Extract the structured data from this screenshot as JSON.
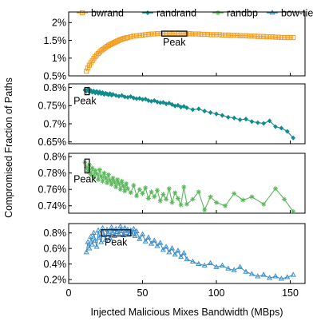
{
  "chart_data": {
    "type": "line",
    "xlabel": "Injected Malicious Mixes Bandwidth (MBps)",
    "ylabel": "Compromised Fraction of Paths",
    "xlim": [
      0,
      160
    ],
    "x_ticks": [
      "0",
      "50",
      "100",
      "150"
    ],
    "x_tick_values": [
      0,
      50,
      100,
      150
    ],
    "legend": {
      "placement": "top",
      "entries": [
        "bwrand",
        "randrand",
        "randbp",
        "bow-tie"
      ]
    },
    "panels": [
      {
        "series_name": "bwrand",
        "color": "#f39c1d",
        "marker": "square",
        "ylim": [
          0.5,
          2.3
        ],
        "y_ticks": [
          "0.5%",
          "1%",
          "1.5%",
          "2%"
        ],
        "y_tick_values": [
          0.5,
          1.0,
          1.5,
          2.0
        ],
        "x": [
          12,
          13,
          14,
          15,
          16,
          17,
          18,
          19,
          20,
          21,
          22,
          23,
          24,
          25,
          26,
          27,
          28,
          29,
          30,
          31,
          32,
          33,
          34,
          35,
          36,
          37,
          38,
          39,
          40,
          42,
          44,
          46,
          48,
          50,
          52,
          54,
          56,
          58,
          60,
          62,
          64,
          66,
          68,
          70,
          72,
          74,
          76,
          78,
          80,
          82,
          84,
          86,
          88,
          90,
          92,
          94,
          96,
          98,
          100,
          102,
          104,
          106,
          108,
          110,
          112,
          114,
          116,
          118,
          120,
          122,
          124,
          126,
          128,
          130,
          132,
          134,
          136,
          138,
          140,
          142,
          144,
          146,
          148,
          150,
          152
        ],
        "values": [
          0.63,
          0.72,
          0.8,
          0.87,
          0.93,
          0.99,
          1.04,
          1.09,
          1.13,
          1.17,
          1.21,
          1.24,
          1.27,
          1.3,
          1.33,
          1.36,
          1.38,
          1.4,
          1.42,
          1.44,
          1.46,
          1.48,
          1.5,
          1.52,
          1.53,
          1.55,
          1.56,
          1.57,
          1.58,
          1.6,
          1.62,
          1.63,
          1.64,
          1.65,
          1.66,
          1.67,
          1.68,
          1.68,
          1.69,
          1.69,
          1.7,
          1.7,
          1.7,
          1.69,
          1.7,
          1.69,
          1.69,
          1.69,
          1.68,
          1.69,
          1.68,
          1.68,
          1.68,
          1.67,
          1.67,
          1.67,
          1.66,
          1.66,
          1.66,
          1.66,
          1.65,
          1.65,
          1.65,
          1.64,
          1.64,
          1.64,
          1.63,
          1.63,
          1.63,
          1.62,
          1.62,
          1.62,
          1.61,
          1.61,
          1.61,
          1.6,
          1.6,
          1.6,
          1.59,
          1.59,
          1.58,
          1.58,
          1.58,
          1.58,
          1.58
        ],
        "peak": {
          "label": "Peak",
          "x_range": [
            63,
            80
          ],
          "y_range": [
            1.62,
            1.76
          ]
        }
      },
      {
        "series_name": "randrand",
        "color": "#0f8c8c",
        "marker": "diamond",
        "ylim": [
          0.645,
          0.81
        ],
        "y_ticks": [
          "0.65%",
          "0.7%",
          "0.75%",
          "0.8%"
        ],
        "y_tick_values": [
          0.65,
          0.7,
          0.75,
          0.8
        ],
        "x": [
          11,
          12,
          13,
          14,
          15,
          16,
          17,
          18,
          19,
          20,
          21,
          22,
          23,
          24,
          25,
          26,
          27,
          28,
          29,
          30,
          32,
          34,
          36,
          38,
          40,
          42,
          44,
          46,
          48,
          50,
          52,
          54,
          56,
          58,
          60,
          62,
          64,
          66,
          68,
          70,
          72,
          74,
          76,
          78,
          80,
          84,
          88,
          92,
          96,
          100,
          104,
          108,
          112,
          116,
          120,
          124,
          128,
          132,
          136,
          140,
          144,
          148,
          152
        ],
        "values": [
          0.793,
          0.79,
          0.795,
          0.788,
          0.792,
          0.787,
          0.79,
          0.785,
          0.789,
          0.784,
          0.788,
          0.783,
          0.786,
          0.781,
          0.784,
          0.782,
          0.78,
          0.783,
          0.779,
          0.781,
          0.778,
          0.776,
          0.778,
          0.774,
          0.773,
          0.775,
          0.771,
          0.769,
          0.77,
          0.767,
          0.768,
          0.764,
          0.762,
          0.764,
          0.76,
          0.758,
          0.759,
          0.755,
          0.757,
          0.753,
          0.749,
          0.751,
          0.746,
          0.748,
          0.744,
          0.739,
          0.741,
          0.735,
          0.731,
          0.727,
          0.723,
          0.718,
          0.716,
          0.711,
          0.713,
          0.706,
          0.703,
          0.701,
          0.708,
          0.692,
          0.688,
          0.679,
          0.661
        ],
        "peak": {
          "label": "Peak",
          "x_range": [
            11,
            14
          ],
          "y_range": [
            0.78,
            0.8
          ]
        }
      },
      {
        "series_name": "randbp",
        "color": "#5cb85c",
        "marker": "star",
        "ylim": [
          0.731,
          0.804
        ],
        "y_ticks": [
          "0.74%",
          "0.76%",
          "0.78%",
          "0.8%"
        ],
        "y_tick_values": [
          0.74,
          0.76,
          0.78,
          0.8
        ],
        "x": [
          11,
          12,
          13,
          14,
          15,
          16,
          17,
          18,
          19,
          20,
          21,
          22,
          23,
          24,
          25,
          26,
          27,
          28,
          29,
          30,
          31,
          32,
          33,
          34,
          35,
          36,
          37,
          38,
          39,
          40,
          42,
          44,
          46,
          48,
          50,
          52,
          54,
          56,
          58,
          60,
          62,
          64,
          66,
          68,
          70,
          72,
          74,
          76,
          78,
          80,
          84,
          88,
          92,
          96,
          100,
          106,
          112,
          118,
          124,
          132,
          140,
          146,
          152
        ],
        "values": [
          0.793,
          0.787,
          0.782,
          0.79,
          0.778,
          0.786,
          0.775,
          0.783,
          0.779,
          0.772,
          0.784,
          0.776,
          0.77,
          0.78,
          0.774,
          0.768,
          0.778,
          0.771,
          0.766,
          0.774,
          0.769,
          0.763,
          0.772,
          0.767,
          0.76,
          0.77,
          0.764,
          0.758,
          0.767,
          0.761,
          0.756,
          0.765,
          0.752,
          0.76,
          0.755,
          0.762,
          0.749,
          0.757,
          0.751,
          0.759,
          0.746,
          0.754,
          0.748,
          0.761,
          0.744,
          0.756,
          0.749,
          0.741,
          0.763,
          0.742,
          0.748,
          0.757,
          0.735,
          0.751,
          0.744,
          0.74,
          0.755,
          0.747,
          0.751,
          0.742,
          0.761,
          0.748,
          0.733
        ],
        "peak": {
          "label": "Peak",
          "x_range": [
            11,
            14
          ],
          "y_range": [
            0.78,
            0.797
          ]
        }
      },
      {
        "series_name": "bow-tie",
        "color": "#3c8dc8",
        "marker": "triangle",
        "ylim": [
          0.15,
          0.92
        ],
        "y_ticks": [
          "0.2%",
          "0.4%",
          "0.6%",
          "0.8%"
        ],
        "y_tick_values": [
          0.2,
          0.4,
          0.6,
          0.8
        ],
        "x": [
          12,
          13,
          14,
          15,
          16,
          17,
          18,
          19,
          20,
          21,
          22,
          23,
          24,
          25,
          26,
          27,
          28,
          29,
          30,
          31,
          32,
          33,
          34,
          35,
          36,
          37,
          38,
          39,
          40,
          41,
          42,
          43,
          44,
          45,
          46,
          48,
          50,
          52,
          54,
          56,
          58,
          60,
          62,
          64,
          66,
          68,
          70,
          72,
          74,
          76,
          78,
          80,
          84,
          88,
          92,
          96,
          100,
          104,
          108,
          112,
          116,
          120,
          124,
          128,
          132,
          136,
          140,
          144,
          148,
          152
        ],
        "values": [
          0.55,
          0.68,
          0.6,
          0.75,
          0.65,
          0.8,
          0.7,
          0.62,
          0.83,
          0.74,
          0.68,
          0.86,
          0.77,
          0.71,
          0.84,
          0.79,
          0.73,
          0.87,
          0.8,
          0.76,
          0.85,
          0.81,
          0.78,
          0.88,
          0.82,
          0.77,
          0.86,
          0.8,
          0.84,
          0.79,
          0.83,
          0.78,
          0.85,
          0.76,
          0.82,
          0.72,
          0.78,
          0.69,
          0.74,
          0.66,
          0.7,
          0.63,
          0.67,
          0.58,
          0.62,
          0.55,
          0.6,
          0.52,
          0.57,
          0.49,
          0.54,
          0.46,
          0.43,
          0.4,
          0.38,
          0.41,
          0.36,
          0.38,
          0.34,
          0.32,
          0.36,
          0.3,
          0.27,
          0.24,
          0.26,
          0.22,
          0.24,
          0.21,
          0.23,
          0.26
        ],
        "peak": {
          "label": "Peak",
          "x_range": [
            22,
            42
          ],
          "y_range": [
            0.76,
            0.84
          ]
        }
      }
    ]
  }
}
